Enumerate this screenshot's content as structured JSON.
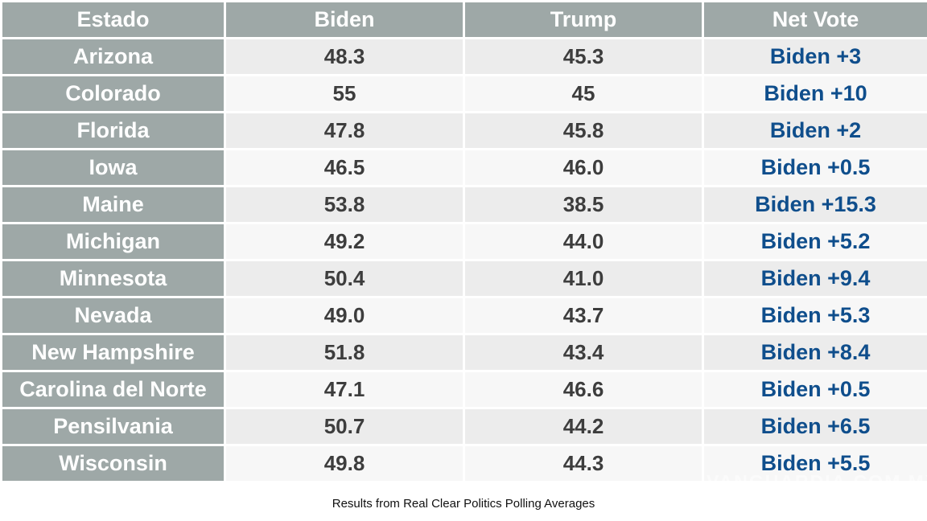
{
  "page": {
    "caption": "Results from Real Clear Politics Polling Averages",
    "watermark": "VANGUARDIA.COM.MX"
  },
  "colors": {
    "header_bg": "#9EA8A7",
    "row_dark": "#ECECEC",
    "row_light": "#F7F7F7",
    "net_blue": "#0F4E8C",
    "value_text": "#3D3D3D"
  },
  "chart_data": {
    "type": "table",
    "columns": [
      "Estado",
      "Biden",
      "Trump",
      "Net Vote"
    ],
    "rows": [
      {
        "estado": "Arizona",
        "biden": "48.3",
        "trump": "45.3",
        "net_vote": "Biden +3"
      },
      {
        "estado": "Colorado",
        "biden": "55",
        "trump": "45",
        "net_vote": "Biden +10"
      },
      {
        "estado": "Florida",
        "biden": "47.8",
        "trump": "45.8",
        "net_vote": "Biden +2"
      },
      {
        "estado": "Iowa",
        "biden": "46.5",
        "trump": "46.0",
        "net_vote": "Biden +0.5"
      },
      {
        "estado": "Maine",
        "biden": "53.8",
        "trump": "38.5",
        "net_vote": "Biden +15.3"
      },
      {
        "estado": "Michigan",
        "biden": "49.2",
        "trump": "44.0",
        "net_vote": "Biden +5.2"
      },
      {
        "estado": "Minnesota",
        "biden": "50.4",
        "trump": "41.0",
        "net_vote": "Biden +9.4"
      },
      {
        "estado": "Nevada",
        "biden": "49.0",
        "trump": "43.7",
        "net_vote": "Biden +5.3"
      },
      {
        "estado": "New Hampshire",
        "biden": "51.8",
        "trump": "43.4",
        "net_vote": "Biden +8.4"
      },
      {
        "estado": "Carolina del Norte",
        "biden": "47.1",
        "trump": "46.6",
        "net_vote": "Biden +0.5"
      },
      {
        "estado": "Pensilvania",
        "biden": "50.7",
        "trump": "44.2",
        "net_vote": "Biden +6.5"
      },
      {
        "estado": "Wisconsin",
        "biden": "49.8",
        "trump": "44.3",
        "net_vote": "Biden +5.5"
      }
    ]
  }
}
